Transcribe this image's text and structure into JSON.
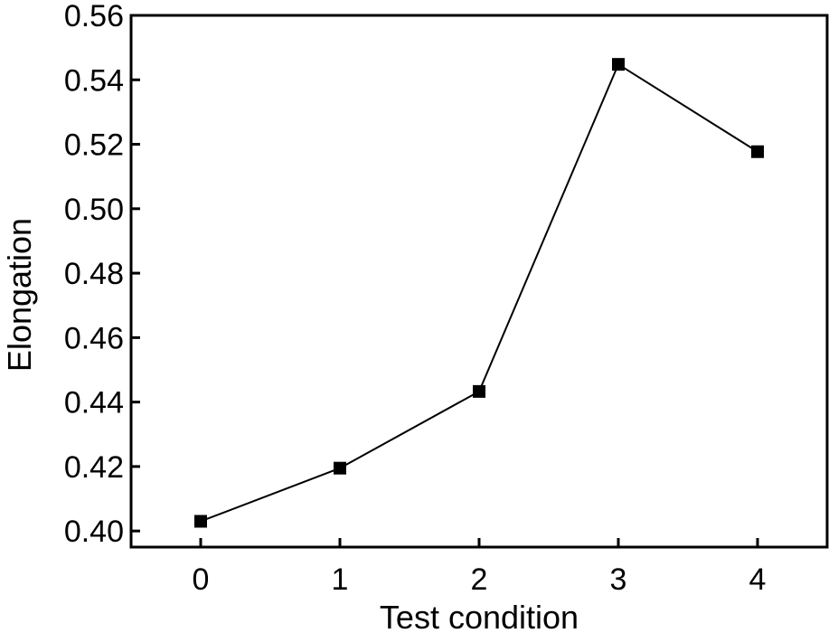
{
  "chart_data": {
    "type": "line",
    "title": "",
    "xlabel": "Test condition",
    "ylabel": "Elongation",
    "x": [
      0,
      1,
      2,
      3,
      4
    ],
    "xticks": [
      "0",
      "1",
      "2",
      "3",
      "4"
    ],
    "xlim": [
      -0.5,
      4.5
    ],
    "yticks": [
      "0.40",
      "0.42",
      "0.44",
      "0.46",
      "0.48",
      "0.50",
      "0.52",
      "0.54",
      "0.56"
    ],
    "ylim": [
      0.395,
      0.56
    ],
    "series": [
      {
        "values": [
          0.403,
          0.4195,
          0.4433,
          0.5448,
          0.5177
        ]
      }
    ],
    "marker": "square",
    "grid": false,
    "colors": {
      "line": "#000000",
      "marker": "#000000",
      "axes": "#000000"
    }
  }
}
